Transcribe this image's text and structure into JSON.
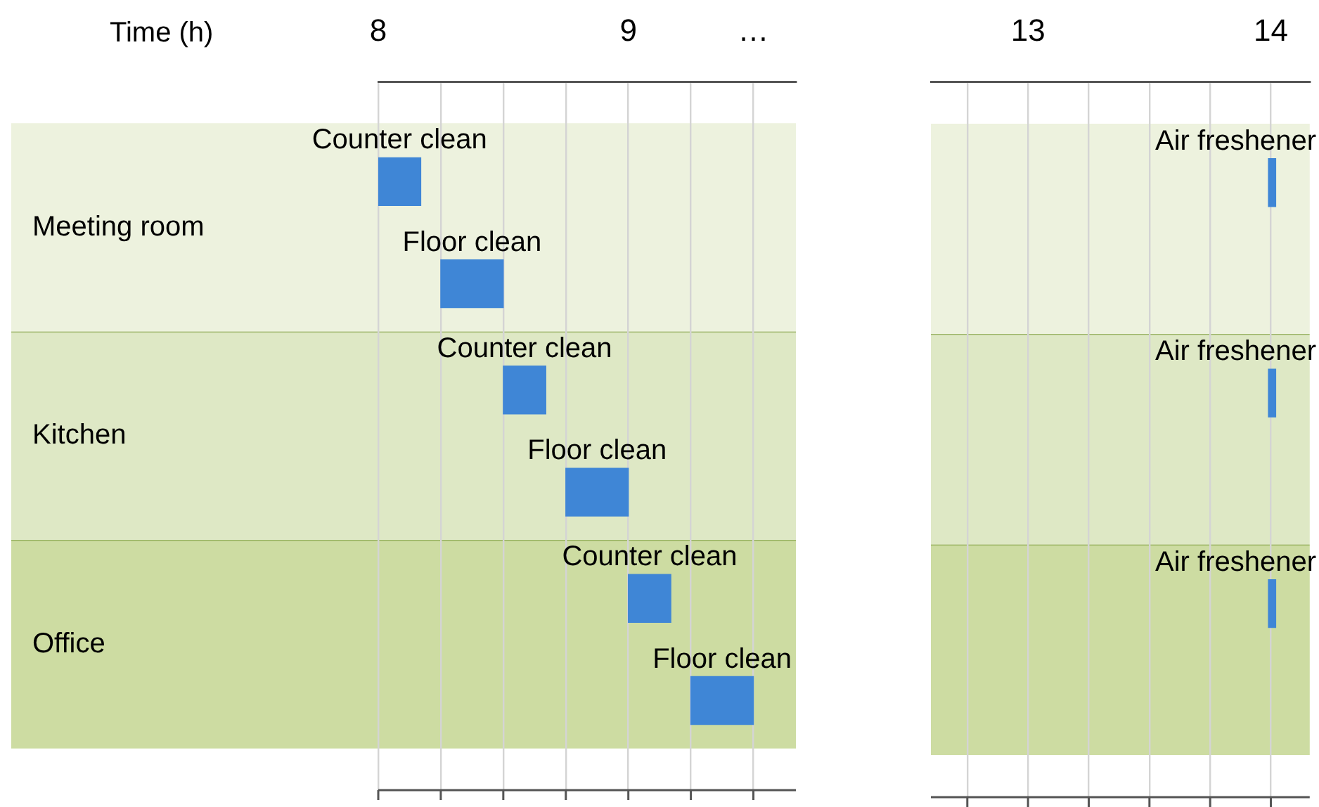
{
  "chart_data": [
    {
      "type": "bar",
      "orientation": "horizontal",
      "xlabel": "Time (h)",
      "categories": [
        "Meeting room",
        "Kitchen",
        "Office"
      ],
      "series": [
        {
          "name": "Counter clean",
          "color": "#3f86d6",
          "base": [
            8,
            8.5,
            9
          ],
          "values": [
            0.17,
            0.17,
            0.17
          ]
        },
        {
          "name": "Floor clean",
          "color": "#3f86d6",
          "base": [
            8.25,
            8.75,
            9.25
          ],
          "values": [
            0.25,
            0.25,
            0.25
          ]
        }
      ],
      "xlim": [
        8,
        9.67
      ],
      "xticks": [
        8,
        {
          "value": 8.25,
          "label": null
        },
        {
          "value": 8.5,
          "label": null
        },
        {
          "value": 8.75,
          "label": null
        },
        9,
        {
          "value": 9.25,
          "label": null
        },
        {
          "value": 9.5,
          "label": "…"
        }
      ],
      "bands": [
        {
          "axis": "y",
          "from": "Meeting room",
          "to": "Meeting room",
          "color": "#edf2de"
        },
        {
          "axis": "y",
          "from": "Kitchen",
          "to": "Kitchen",
          "color": "#dee8c5"
        },
        {
          "axis": "y",
          "from": "Office",
          "to": "Office",
          "color": "#cddca2"
        }
      ],
      "grid": "x"
    },
    {
      "type": "bar",
      "orientation": "horizontal",
      "categories": [
        "Meeting room",
        "Kitchen",
        "Office"
      ],
      "series": [
        {
          "name": "Air freshener",
          "color": "#3f86d6",
          "base": [
            13.99,
            13.99,
            13.99
          ],
          "values": [
            0.03,
            0.03,
            0.03
          ]
        }
      ],
      "xlim": [
        12.6,
        14.16
      ],
      "xticks": [
        {
          "value": 12.75,
          "label": null
        },
        13,
        {
          "value": 13.25,
          "label": null
        },
        {
          "value": 13.5,
          "label": null
        },
        {
          "value": 13.75,
          "label": null
        },
        14
      ],
      "bands": [
        {
          "axis": "y",
          "from": "Meeting room",
          "to": "Meeting room",
          "color": "#edf2de"
        },
        {
          "axis": "y",
          "from": "Kitchen",
          "to": "Kitchen",
          "color": "#dee8c5"
        },
        {
          "axis": "y",
          "from": "Office",
          "to": "Office",
          "color": "#cddca2"
        }
      ],
      "grid": "x",
      "tick_labels": "x"
    }
  ]
}
